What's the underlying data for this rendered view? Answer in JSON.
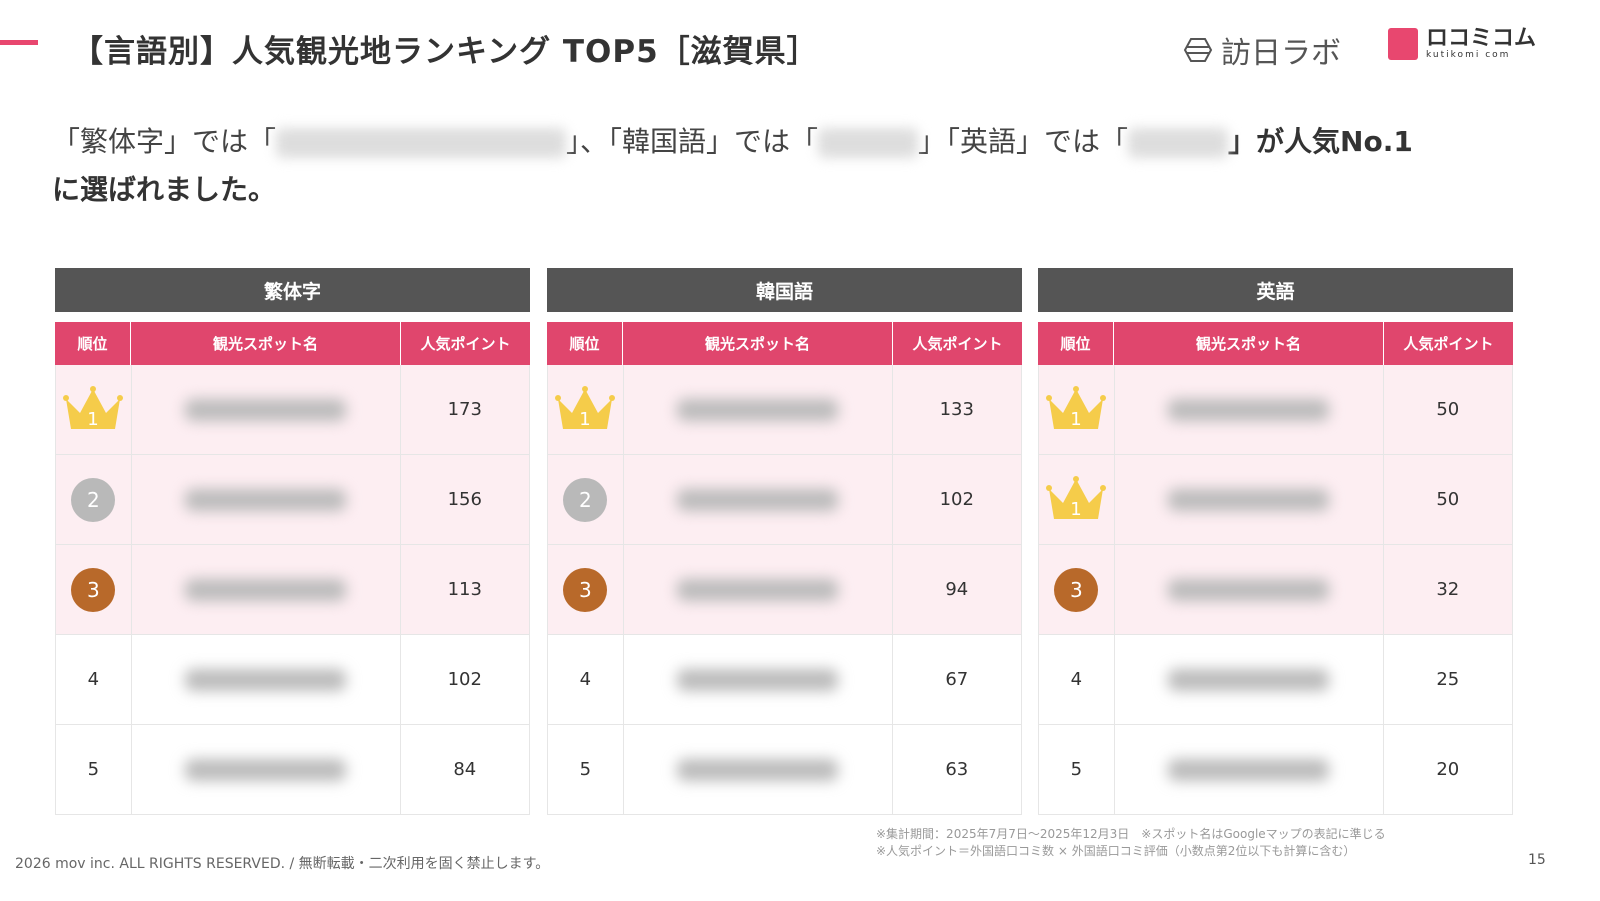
{
  "header": {
    "title": "【言語別】人気観光地ランキング TOP5［滋賀県］",
    "logo_houjin": "訪日ラボ",
    "logo_kutikomi": "ロコミコム",
    "logo_kutikomi_sub": "kutikomi com"
  },
  "lead": {
    "p1": "「繁体字」では「",
    "p2": "」、「韓国語」では「",
    "p3": "」「英語」では「",
    "p4": "」が人気No.1",
    "p5": "に選ばれました。"
  },
  "columns": {
    "rank": "順位",
    "name": "観光スポット名",
    "points": "人気ポイント"
  },
  "colors": {
    "accent": "#e0466d",
    "panel_header": "#555555",
    "top3_bg": "#fdeef2",
    "gold": "#f5cc4a",
    "silver": "#b9b9b9",
    "bronze": "#b8692a"
  },
  "panels": [
    {
      "title": "繁体字",
      "rows": [
        {
          "rank": "1",
          "icon": "crown",
          "points": "173"
        },
        {
          "rank": "2",
          "icon": "silver-medal",
          "points": "156"
        },
        {
          "rank": "3",
          "icon": "bronze-medal",
          "points": "113"
        },
        {
          "rank": "4",
          "icon": "",
          "points": "102"
        },
        {
          "rank": "5",
          "icon": "",
          "points": "84"
        }
      ]
    },
    {
      "title": "韓国語",
      "rows": [
        {
          "rank": "1",
          "icon": "crown",
          "points": "133"
        },
        {
          "rank": "2",
          "icon": "silver-medal",
          "points": "102"
        },
        {
          "rank": "3",
          "icon": "bronze-medal",
          "points": "94"
        },
        {
          "rank": "4",
          "icon": "",
          "points": "67"
        },
        {
          "rank": "5",
          "icon": "",
          "points": "63"
        }
      ]
    },
    {
      "title": "英語",
      "rows": [
        {
          "rank": "1",
          "icon": "crown",
          "points": "50"
        },
        {
          "rank": "1",
          "icon": "crown",
          "points": "50"
        },
        {
          "rank": "3",
          "icon": "bronze-medal",
          "points": "32"
        },
        {
          "rank": "4",
          "icon": "",
          "points": "25"
        },
        {
          "rank": "5",
          "icon": "",
          "points": "20"
        }
      ]
    }
  ],
  "footer": {
    "copyright": "2026 mov inc. ALL RIGHTS RESERVED. / 無断転載・二次利用を固く禁止します。",
    "note1": "※集計期間：2025年7月7日〜2025年12月3日　※スポット名はGoogleマップの表記に準じる",
    "note2": "※人気ポイント＝外国語口コミ数 × 外国語口コミ評価（小数点第2位以下も計算に含む）",
    "page": "15"
  }
}
